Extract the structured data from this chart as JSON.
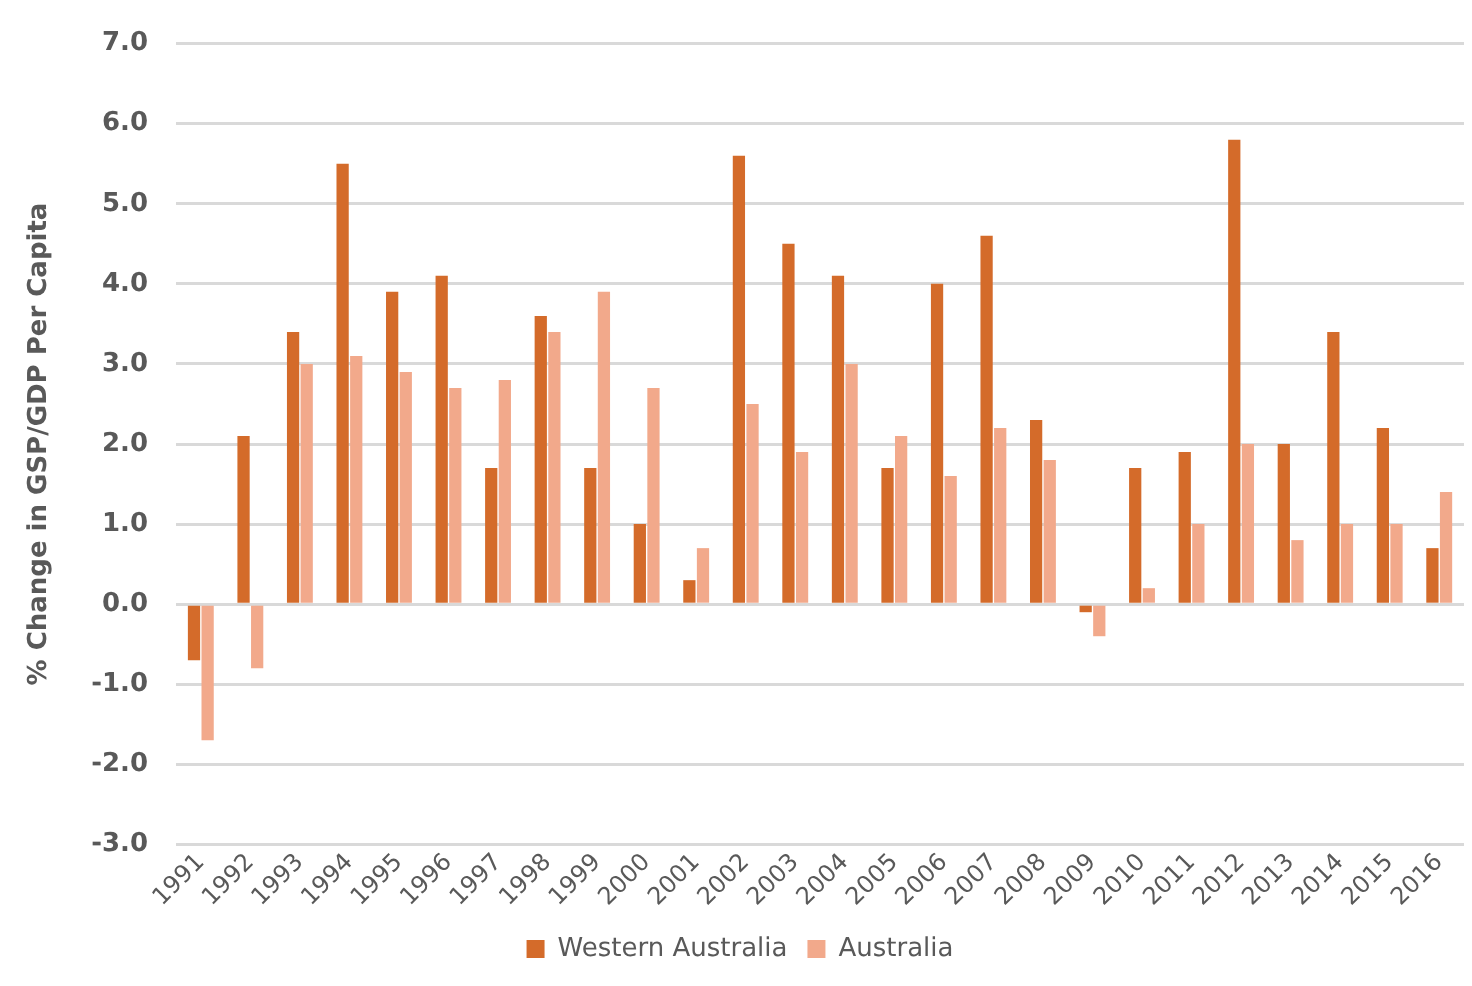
{
  "chart_data": {
    "type": "bar",
    "ylabel": "% Change in GSP/GDP Per Capita",
    "categories": [
      "1991",
      "1992",
      "1993",
      "1994",
      "1995",
      "1996",
      "1997",
      "1998",
      "1999",
      "2000",
      "2001",
      "2002",
      "2003",
      "2004",
      "2005",
      "2006",
      "2007",
      "2008",
      "2009",
      "2010",
      "2011",
      "2012",
      "2013",
      "2014",
      "2015",
      "2016"
    ],
    "series": [
      {
        "name": "Western Australia",
        "color": "#d46b2a",
        "values": [
          -0.7,
          2.1,
          3.4,
          5.5,
          3.9,
          4.1,
          1.7,
          3.6,
          1.7,
          1.0,
          0.3,
          5.6,
          4.5,
          4.1,
          1.7,
          4.0,
          4.6,
          2.3,
          -0.1,
          1.7,
          1.9,
          5.8,
          2.0,
          3.4,
          2.2,
          0.7
        ]
      },
      {
        "name": "Australia",
        "color": "#f2a98b",
        "values": [
          -1.7,
          -0.8,
          3.0,
          3.1,
          2.9,
          2.7,
          2.8,
          3.4,
          3.9,
          2.7,
          0.7,
          2.5,
          1.9,
          3.0,
          2.1,
          1.6,
          2.2,
          1.8,
          -0.4,
          0.2,
          1.0,
          2.0,
          0.8,
          1.0,
          1.0,
          1.4
        ]
      }
    ],
    "ylim": [
      -3,
      7
    ],
    "yticks": [
      {
        "value": -3,
        "label": "-3.0"
      },
      {
        "value": -2,
        "label": "-2.0"
      },
      {
        "value": -1,
        "label": "-1.0"
      },
      {
        "value": 0,
        "label": "0.0"
      },
      {
        "value": 1,
        "label": "1.0"
      },
      {
        "value": 2,
        "label": "2.0"
      },
      {
        "value": 3,
        "label": "3.0"
      },
      {
        "value": 4,
        "label": "4.0"
      },
      {
        "value": 5,
        "label": "5.0"
      },
      {
        "value": 6,
        "label": "6.0"
      },
      {
        "value": 7,
        "label": "7.0"
      }
    ],
    "grid": "y",
    "legend": "bottom"
  }
}
